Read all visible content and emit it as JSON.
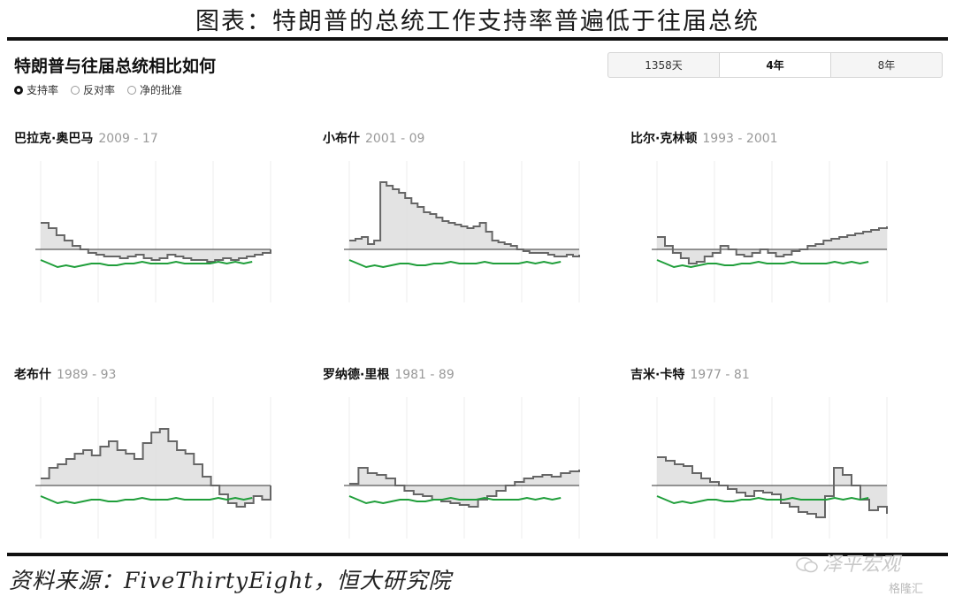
{
  "figure_title": "图表：特朗普的总统工作支持率普遍低于往届总统",
  "section_title": "特朗普与往届总统相比如何",
  "legend": [
    {
      "label": "支持率",
      "selected": true
    },
    {
      "label": "反对率",
      "selected": false
    },
    {
      "label": "净的批准",
      "selected": false
    }
  ],
  "tabs": [
    {
      "label": "1358天",
      "active": false
    },
    {
      "label": "4年",
      "active": true
    },
    {
      "label": "8年",
      "active": false
    }
  ],
  "source": "资料来源：FiveThirtyEight，恒大研究院",
  "watermark": "泽平宏观",
  "watermark2": "格隆汇",
  "colors": {
    "president_line": "#666666",
    "trump_line": "#1f9e3a",
    "fill": "#dcdcdc",
    "baseline": "#333333",
    "grid": "#eeeeee"
  },
  "chart_data": [
    {
      "type": "line",
      "president": "巴拉克·奥巴马",
      "years": "2009 - 17",
      "series": [
        {
          "values": [
            65,
            62,
            58,
            55,
            52,
            50,
            48,
            47,
            46,
            46,
            45,
            46,
            47,
            45,
            44,
            45,
            47,
            46,
            45,
            44,
            44,
            43,
            44,
            45,
            44,
            45,
            46,
            47,
            48,
            50
          ]
        },
        {
          "values": [
            44,
            42,
            40,
            41,
            40,
            41,
            42,
            42,
            41,
            41,
            42,
            42,
            43,
            42,
            42,
            42,
            43,
            42,
            42,
            42,
            42,
            43,
            42,
            43,
            42,
            43
          ]
        }
      ]
    },
    {
      "type": "line",
      "president": "小布什",
      "years": "2001 - 09",
      "series": [
        {
          "values": [
            55,
            56,
            57,
            53,
            55,
            88,
            86,
            84,
            82,
            79,
            76,
            74,
            71,
            70,
            68,
            66,
            65,
            64,
            63,
            62,
            63,
            65,
            60,
            55,
            54,
            53,
            52,
            50,
            49,
            48,
            48,
            48,
            47,
            46,
            46,
            47,
            46,
            47
          ]
        },
        {
          "values": [
            44,
            42,
            40,
            41,
            40,
            41,
            42,
            42,
            41,
            41,
            42,
            42,
            43,
            42,
            42,
            42,
            43,
            42,
            42,
            42,
            42,
            43,
            42,
            43,
            42,
            43
          ]
        }
      ]
    },
    {
      "type": "line",
      "president": "比尔·克林顿",
      "years": "1993 - 2001",
      "series": [
        {
          "values": [
            57,
            52,
            48,
            45,
            42,
            43,
            46,
            48,
            52,
            50,
            47,
            46,
            48,
            50,
            48,
            46,
            47,
            49,
            50,
            52,
            53,
            55,
            56,
            57,
            58,
            59,
            60,
            61,
            62,
            63
          ]
        },
        {
          "values": [
            44,
            42,
            40,
            41,
            40,
            41,
            42,
            42,
            41,
            41,
            42,
            42,
            43,
            42,
            42,
            42,
            43,
            42,
            42,
            42,
            42,
            43,
            42,
            43,
            42,
            43
          ]
        }
      ]
    },
    {
      "type": "line",
      "president": "老布什",
      "years": "1989 - 93",
      "series": [
        {
          "values": [
            54,
            60,
            62,
            65,
            68,
            70,
            67,
            72,
            75,
            70,
            68,
            65,
            74,
            80,
            82,
            75,
            70,
            68,
            62,
            55,
            50,
            45,
            40,
            38,
            40,
            44,
            42,
            50
          ]
        },
        {
          "values": [
            44,
            42,
            40,
            41,
            40,
            41,
            42,
            42,
            41,
            41,
            42,
            42,
            43,
            42,
            42,
            42,
            43,
            42,
            42,
            42,
            42,
            43,
            42,
            43,
            42,
            43
          ]
        }
      ]
    },
    {
      "type": "line",
      "president": "罗纳德·里根",
      "years": "1981 - 89",
      "series": [
        {
          "values": [
            51,
            60,
            57,
            56,
            54,
            50,
            47,
            45,
            44,
            42,
            41,
            40,
            39,
            38,
            42,
            44,
            47,
            50,
            52,
            54,
            55,
            56,
            55,
            57,
            58,
            59
          ]
        },
        {
          "values": [
            44,
            42,
            40,
            41,
            40,
            41,
            42,
            42,
            41,
            41,
            42,
            42,
            43,
            42,
            42,
            42,
            43,
            42,
            42,
            42,
            42,
            43,
            42,
            43,
            42,
            43
          ]
        }
      ]
    },
    {
      "type": "line",
      "president": "吉米·卡特",
      "years": "1977 - 81",
      "series": [
        {
          "values": [
            66,
            64,
            62,
            61,
            57,
            54,
            52,
            50,
            48,
            46,
            44,
            47,
            46,
            45,
            40,
            38,
            35,
            34,
            32,
            44,
            60,
            56,
            50,
            42,
            36,
            38,
            34
          ]
        },
        {
          "values": [
            44,
            42,
            40,
            41,
            40,
            41,
            42,
            42,
            41,
            41,
            42,
            42,
            43,
            42,
            42,
            42,
            43,
            42,
            42,
            42,
            42,
            43,
            42,
            43,
            42,
            43
          ]
        }
      ]
    }
  ]
}
